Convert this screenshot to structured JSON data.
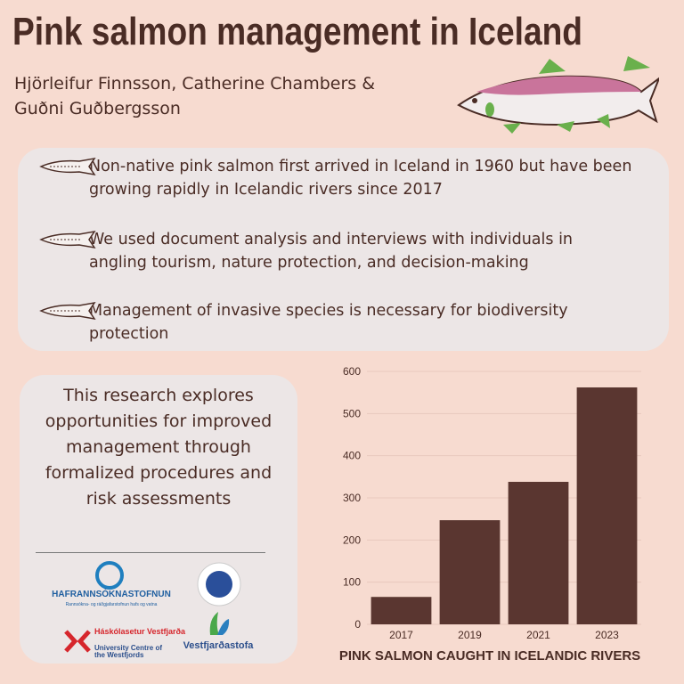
{
  "header": {
    "title": "Pink salmon management in Iceland",
    "authors": "Hjörleifur Finnsson, Catherine Chambers & Guðni Guðbergsson"
  },
  "bullets": [
    "Non-native pink salmon first arrived in Iceland in 1960 but have been growing rapidly in Icelandic rivers since 2017",
    "We used document analysis and interviews with individuals in angling tourism, nature protection, and decision-making",
    "Management of invasive species is necessary for biodiversity protection"
  ],
  "summary": "This research explores opportunities for improved management through formalized procedures and risk assessments",
  "logos": {
    "hafro": {
      "name": "HAFRANNSÓKNASTOFNUN",
      "tagline": "Rannsókna- og ráðgjafarstofnun hafs og vatna"
    },
    "uw": {
      "name": "Háskólasetur Vestfjarða",
      "english": "University Centre of the Westfjords"
    },
    "vestfjardastofa": "Vestfjarðastofa"
  },
  "chart_data": {
    "type": "bar",
    "title": "PINK SALMON CAUGHT IN ICELANDIC RIVERS",
    "categories": [
      "2017",
      "2019",
      "2021",
      "2023"
    ],
    "values": [
      65,
      247,
      338,
      562
    ],
    "color": "#5a3630",
    "ylim": [
      0,
      600
    ],
    "yticks": [
      0,
      100,
      200,
      300,
      400,
      500,
      600
    ],
    "grid": true
  }
}
